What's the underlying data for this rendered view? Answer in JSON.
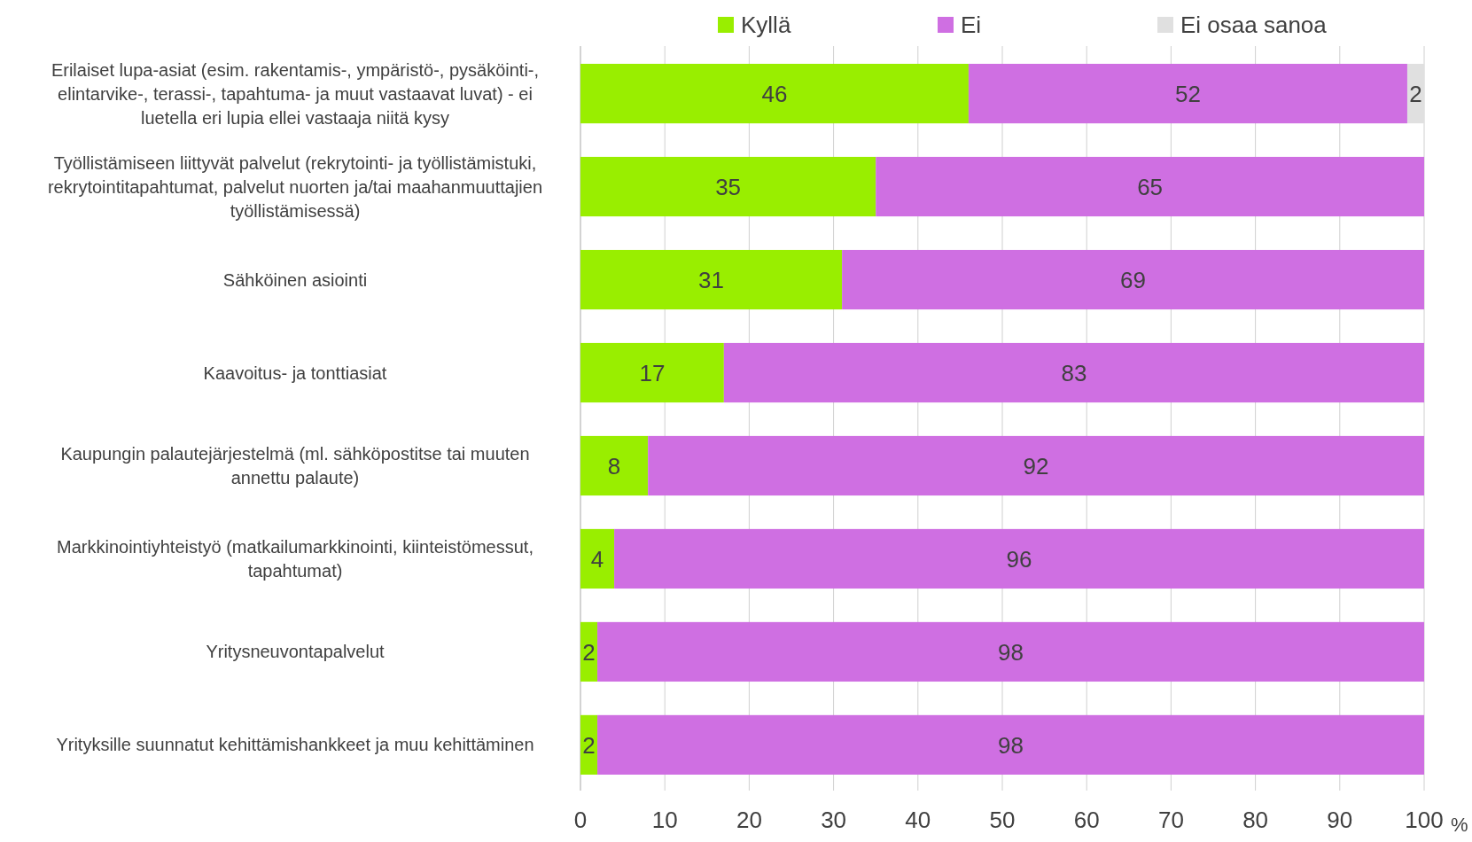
{
  "chart_data": {
    "type": "bar",
    "orientation": "horizontal",
    "stacked": true,
    "categories": [
      "Erilaiset lupa-asiat (esim. rakentamis-, ympäristö-, pysäköinti-, elintarvike-, terassi-, tapahtuma- ja muut vastaavat luvat) - ei luetella eri lupia ellei vastaaja niitä kysy",
      "Työllistämiseen liittyvät palvelut (rekrytointi- ja työllistämistuki, rekrytointitapahtumat, palvelut nuorten ja/tai maahanmuuttajien työllistämisessä)",
      "Sähköinen asiointi",
      "Kaavoitus- ja tonttiasiat",
      "Kaupungin palautejärjestelmä (ml. sähköpostitse tai muuten annettu palaute)",
      "Markkinointiyhteistyö (matkailumarkkinointi, kiinteistömessut, tapahtumat)",
      "Yritysneuvontapalvelut",
      "Yrityksille suunnatut kehittämishankkeet ja muu kehittäminen"
    ],
    "series": [
      {
        "name": "Kyllä",
        "color": "#99ee00",
        "values": [
          46,
          35,
          31,
          17,
          8,
          4,
          2,
          2
        ]
      },
      {
        "name": "Ei",
        "color": "#cf6fe2",
        "values": [
          52,
          65,
          69,
          83,
          92,
          96,
          98,
          98
        ]
      },
      {
        "name": "Ei osaa sanoa",
        "color": "#e0e0e0",
        "values": [
          2,
          null,
          null,
          null,
          null,
          null,
          null,
          null
        ]
      }
    ],
    "xlim": [
      0,
      100
    ],
    "xticks": [
      0,
      10,
      20,
      30,
      40,
      50,
      60,
      70,
      80,
      90,
      100
    ],
    "xlabel": "%",
    "grid": "x",
    "legend": "top",
    "data_labels": true
  }
}
